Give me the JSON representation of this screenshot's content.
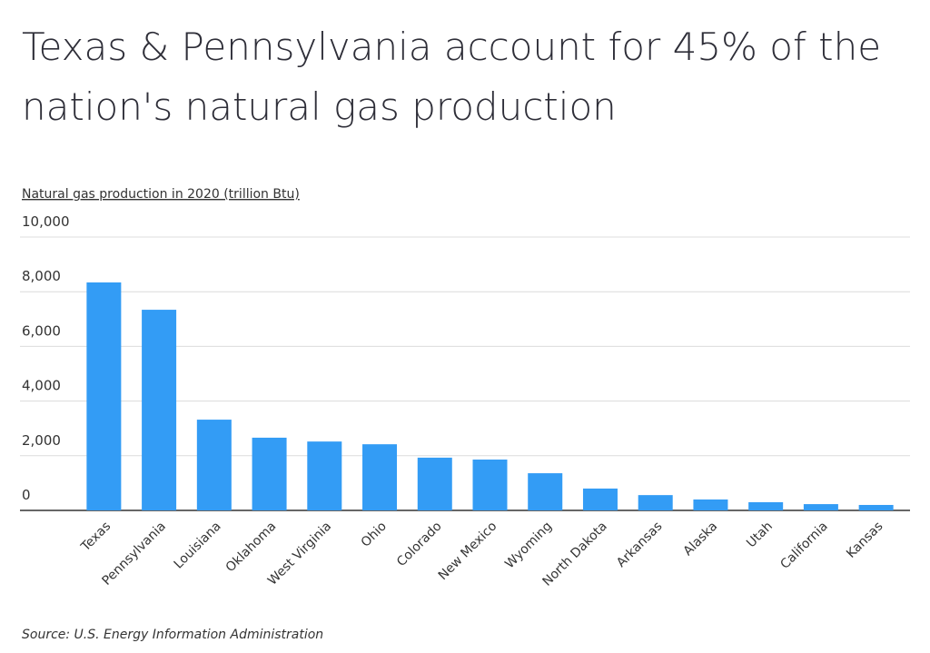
{
  "chart_data": {
    "type": "bar",
    "title": [
      "Texas & Pennsylvania account for 45% of the",
      "nation's natural gas production"
    ],
    "y_label": "Natural gas production in 2020 (trillion Btu)",
    "source": "Source:  U.S. Energy Information Administration",
    "categories": [
      "Texas",
      "Pennsylvania",
      "Louisiana",
      "Oklahoma",
      "West Virginia",
      "Ohio",
      "Colorado",
      "New Mexico",
      "Wyoming",
      "North Dakota",
      "Arkansas",
      "Alaska",
      "Utah",
      "California",
      "Kansas"
    ],
    "values": [
      8340,
      7340,
      3320,
      2660,
      2520,
      2420,
      1930,
      1860,
      1360,
      800,
      560,
      400,
      300,
      230,
      200
    ],
    "color": "#339cf5",
    "ylim": [
      0,
      10000
    ],
    "yticks": [
      0,
      {
        "value": 2000,
        "label": "2,000"
      },
      {
        "value": 4000,
        "label": "4,000"
      },
      {
        "value": 6000,
        "label": "6,000"
      },
      {
        "value": 8000,
        "label": "8,000"
      },
      {
        "value": 10000,
        "label": "10,000"
      }
    ],
    "grid": true
  }
}
